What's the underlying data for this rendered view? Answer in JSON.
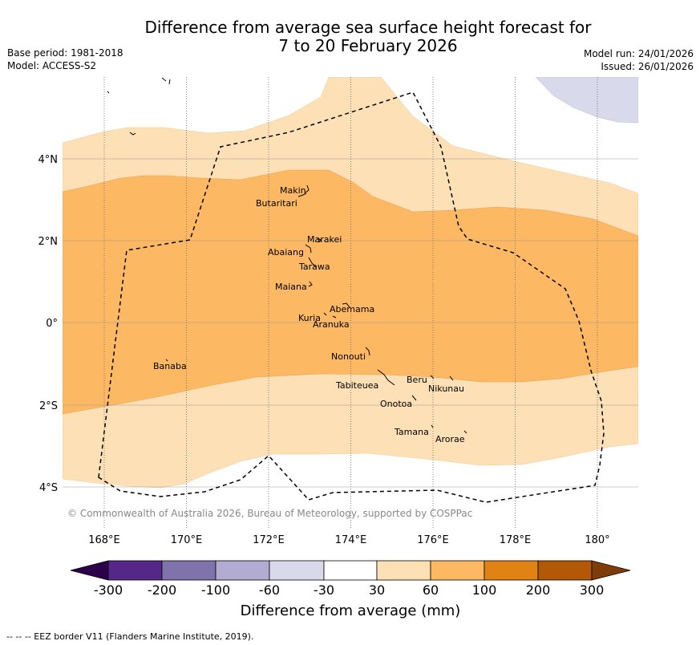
{
  "title": {
    "line1": "Difference from average sea surface height forecast for",
    "line2": "7 to 20 February 2026"
  },
  "meta": {
    "base_period": "Base period: 1981-2018",
    "model": "Model: ACCESS-S2",
    "model_run": "Model run: 24/01/2026",
    "issued": "Issued: 26/01/2026"
  },
  "axes": {
    "lon_labels": [
      "168°E",
      "170°E",
      "172°E",
      "174°E",
      "176°E",
      "178°E",
      "180°"
    ],
    "lat_labels": [
      "4°N",
      "2°N",
      "0°",
      "2°S",
      "4°S"
    ]
  },
  "places": [
    "Makin",
    "Butaritari",
    "Marakei",
    "Abaiang",
    "Tarawa",
    "Maiana",
    "Abemama",
    "Kuria",
    "Aranuka",
    "Nonouti",
    "Banaba",
    "Beru",
    "Tabiteuea",
    "Nikunau",
    "Onotoa",
    "Tamana",
    "Arorae"
  ],
  "copyright": "© Commonwealth of Australia 2026, Bureau of Meteorology, supported by COSPPac",
  "colorbar": {
    "label": "Difference from average (mm)",
    "ticks": [
      "-300",
      "-200",
      "-100",
      "-60",
      "-30",
      "30",
      "60",
      "100",
      "200",
      "300"
    ],
    "colors": {
      "below_min": "#2d004b",
      "bins": [
        "#542788",
        "#8073ac",
        "#b2abd2",
        "#d8daeb",
        "#ffffff",
        "#fee0b6",
        "#fdb863",
        "#e08214",
        "#b35806"
      ],
      "above_max": "#7f3b08"
    }
  },
  "footer": "--  --  -- EEZ border V11 (Flanders Marine Institute, 2019)."
}
